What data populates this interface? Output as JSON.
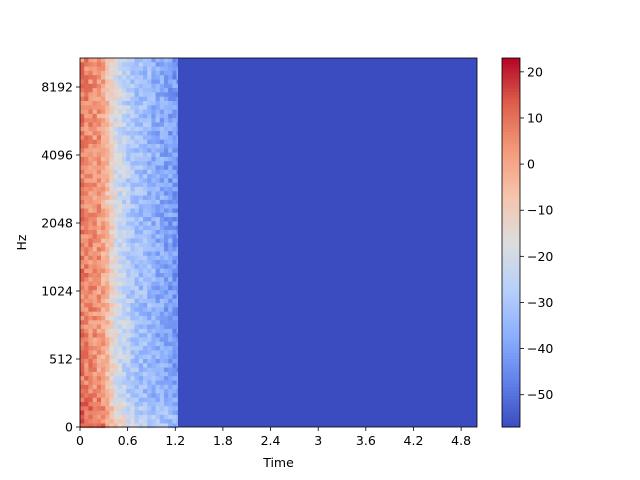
{
  "chart_data": {
    "type": "heatmap",
    "xlabel": "Time",
    "ylabel": "Hz",
    "y_scale": "log-frequency",
    "xlim": [
      0,
      5.0
    ],
    "x_ticks": [
      0,
      0.6,
      1.2,
      1.8,
      2.4,
      3.0,
      3.6,
      4.2,
      4.8
    ],
    "x_tick_labels": [
      "0",
      "0.6",
      "1.2",
      "1.8",
      "2.4",
      "3",
      "3.6",
      "4.2",
      "4.8"
    ],
    "y_ticks": [
      0,
      512,
      1024,
      2048,
      4096,
      8192
    ],
    "y_tick_labels": [
      "0",
      "512",
      "1024",
      "2048",
      "4096",
      "8192"
    ],
    "colorbar": {
      "colormap": "coolwarm",
      "range": [
        -57,
        23
      ],
      "ticks": [
        20,
        10,
        0,
        -10,
        -20,
        -30,
        -40,
        -50
      ],
      "tick_labels": [
        "20",
        "10",
        "0",
        "−10",
        "−20",
        "−30",
        "−40",
        "−50"
      ]
    },
    "signal_end_time": 1.23,
    "background_db": -57,
    "colors": {
      "low": "#3b4cc0",
      "mid": "#dddddd",
      "high": "#b40426"
    }
  }
}
